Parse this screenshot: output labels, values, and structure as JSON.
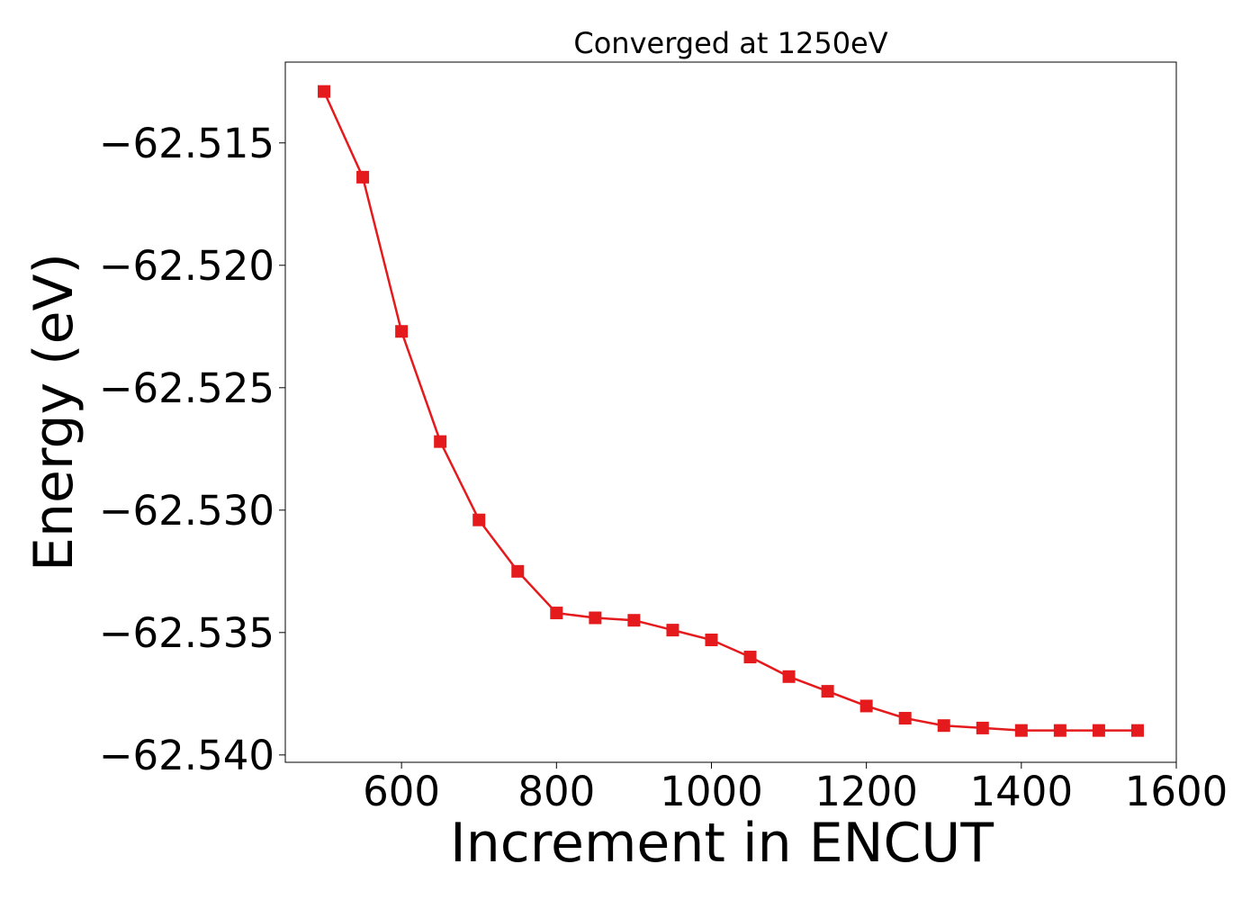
{
  "chart_data": {
    "type": "line",
    "title": "Converged at 1250eV",
    "xlabel": "Increment in ENCUT",
    "ylabel": "Energy (eV)",
    "xlim": [
      450,
      1600
    ],
    "ylim": [
      -62.5403,
      -62.5117
    ],
    "x_ticks": [
      600,
      800,
      1000,
      1200,
      1400,
      1600
    ],
    "x_tick_labels": [
      "600",
      "800",
      "1000",
      "1200",
      "1400",
      "1600"
    ],
    "y_ticks": [
      -62.515,
      -62.52,
      -62.525,
      -62.53,
      -62.535,
      -62.54
    ],
    "y_tick_labels": [
      "−62.515",
      "−62.520",
      "−62.525",
      "−62.530",
      "−62.535",
      "−62.540"
    ],
    "grid": false,
    "legend": "none",
    "marker": "square",
    "color": "#e41a1c",
    "series": [
      {
        "x": [
          500,
          550,
          600,
          650,
          700,
          750,
          800,
          850,
          900,
          950,
          1000,
          1050,
          1100,
          1150,
          1200,
          1250,
          1300,
          1350,
          1400,
          1450,
          1500,
          1550
        ],
        "values": [
          -62.5129,
          -62.5164,
          -62.5227,
          -62.5272,
          -62.5304,
          -62.5325,
          -62.5342,
          -62.5344,
          -62.5345,
          -62.5349,
          -62.5353,
          -62.536,
          -62.5368,
          -62.5374,
          -62.538,
          -62.5385,
          -62.5388,
          -62.5389,
          -62.539,
          -62.539,
          -62.539,
          -62.539
        ]
      }
    ]
  }
}
